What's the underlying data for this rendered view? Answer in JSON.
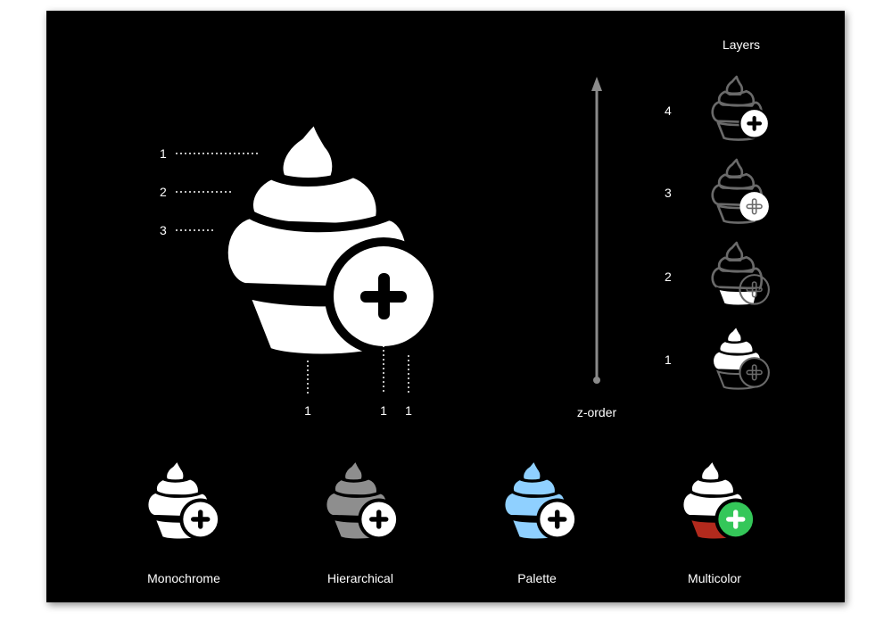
{
  "diagram": {
    "layers_heading": "Layers",
    "axis_label": "z-order",
    "left_layer_labels": [
      "1",
      "2",
      "3"
    ],
    "bottom_layer_labels": [
      "1",
      "1",
      "1"
    ],
    "stack_labels": [
      "4",
      "3",
      "2",
      "1"
    ]
  },
  "variants": [
    {
      "label": "Monochrome",
      "icon": "cupcake-plus-icon"
    },
    {
      "label": "Hierarchical",
      "icon": "cupcake-plus-icon"
    },
    {
      "label": "Palette",
      "icon": "cupcake-plus-icon"
    },
    {
      "label": "Multicolor",
      "icon": "cupcake-plus-icon"
    }
  ],
  "colors": {
    "background": "#000000",
    "foreground": "#ffffff",
    "hierarchical_gray": "#8e8e8e",
    "palette_blue": "#8fd0ff",
    "multicolor_red": "#b22a1d",
    "multicolor_green": "#34c759",
    "dim_gray": "#5a5a5a"
  }
}
